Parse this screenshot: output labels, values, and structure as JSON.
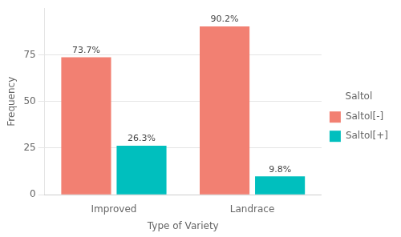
{
  "chart_data": {
    "type": "bar",
    "categories": [
      "Improved",
      "Landrace"
    ],
    "series": [
      {
        "name": "Saltol[-]",
        "color": "#F28072",
        "values": [
          73.7,
          90.2
        ],
        "value_labels": [
          "73.7%",
          "90.2%"
        ]
      },
      {
        "name": "Saltol[+]",
        "color": "#00BFBE",
        "values": [
          26.3,
          9.8
        ],
        "value_labels": [
          "26.3%",
          "9.8%"
        ]
      }
    ],
    "xlabel": "Type of Variety",
    "ylabel": "Frequency",
    "legend_title": "Saltol",
    "ylim": [
      0,
      100
    ],
    "yticks": [
      0,
      25,
      50,
      75
    ],
    "grid": true,
    "legend": "right",
    "data_labels": true
  }
}
